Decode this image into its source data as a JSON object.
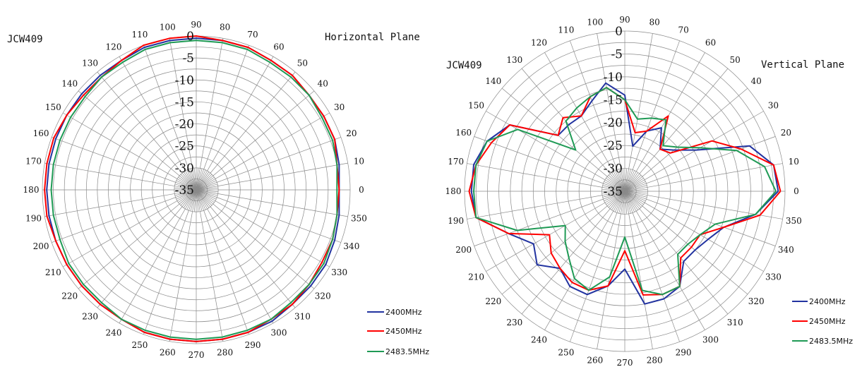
{
  "colors": {
    "s2400": "#2233a0",
    "s2450": "#ff0000",
    "s2483": "#1f9a55"
  },
  "chart_data": [
    {
      "type": "polar-line",
      "title": "JCW409",
      "plane_label": "Horizontal Plane",
      "rlim": [
        -35,
        0
      ],
      "radial_ticks": [
        "0",
        "-5",
        "-10",
        "-15",
        "-20",
        "-25",
        "-30",
        "-35"
      ],
      "angle_ticks": [
        "0",
        "10",
        "20",
        "30",
        "40",
        "50",
        "60",
        "70",
        "80",
        "90",
        "100",
        "110",
        "120",
        "130",
        "140",
        "150",
        "160",
        "170",
        "180",
        "190",
        "200",
        "210",
        "220",
        "230",
        "240",
        "250",
        "260",
        "270",
        "280",
        "290",
        "300",
        "310",
        "320",
        "330",
        "340",
        "350"
      ],
      "angles": [
        0,
        10,
        20,
        30,
        40,
        50,
        60,
        70,
        80,
        90,
        100,
        110,
        120,
        130,
        140,
        150,
        160,
        170,
        180,
        190,
        200,
        210,
        220,
        230,
        240,
        250,
        260,
        270,
        280,
        290,
        300,
        310,
        320,
        330,
        340,
        350
      ],
      "series": [
        {
          "name": "2400MHz",
          "color": "#2233a0",
          "values": [
            -2.5,
            -2,
            -1.5,
            -1.5,
            -1.5,
            -1,
            -1,
            -0.5,
            -0.5,
            -0.5,
            -0.5,
            -0.5,
            -1,
            -1,
            -1,
            -1,
            -1,
            -1,
            -1,
            -1,
            -1,
            -1,
            -1,
            -1,
            -1,
            -0.5,
            -0.5,
            -0.5,
            -0.5,
            -0.5,
            -0.5,
            -1,
            -1,
            -1,
            -1.5,
            -2
          ]
        },
        {
          "name": "2450MHz",
          "color": "#ff0000",
          "values": [
            -2.5,
            -2.5,
            -1.5,
            -1.5,
            -1.5,
            -1,
            -1,
            -0.5,
            -0.5,
            0,
            0,
            0,
            -1,
            -1.5,
            -1.5,
            -1,
            -0.5,
            -0.5,
            -0.5,
            -0.5,
            -1,
            -1,
            -1,
            -1,
            -1,
            -0.5,
            -0.5,
            -0.5,
            -0.5,
            -0.5,
            -1,
            -1,
            -1.5,
            -2,
            -2,
            -2.5
          ]
        },
        {
          "name": "2483.5MHz",
          "color": "#1f9a55",
          "values": [
            -3,
            -2.5,
            -2,
            -2,
            -1.5,
            -1.5,
            -1.5,
            -1,
            -1,
            -1,
            -1,
            -1,
            -1.5,
            -1.5,
            -2,
            -2,
            -2,
            -2,
            -2,
            -2,
            -2,
            -1.5,
            -1.5,
            -1.5,
            -1,
            -1,
            -1,
            -1,
            -1,
            -1,
            -1,
            -1.5,
            -1.5,
            -1.5,
            -2,
            -2.5
          ]
        }
      ]
    },
    {
      "type": "polar-line",
      "title": "JCW409",
      "plane_label": "Vertical Plane",
      "rlim": [
        -35,
        0
      ],
      "radial_ticks": [
        "0",
        "-5",
        "-10",
        "-15",
        "-20",
        "-25",
        "-30",
        "-35"
      ],
      "angle_ticks": [
        "0",
        "10",
        "20",
        "30",
        "40",
        "50",
        "60",
        "70",
        "80",
        "90",
        "100",
        "110",
        "120",
        "130",
        "140",
        "150",
        "160",
        "170",
        "180",
        "190",
        "200",
        "210",
        "220",
        "230",
        "240",
        "250",
        "260",
        "270",
        "280",
        "290",
        "300",
        "310",
        "320",
        "330",
        "340",
        "350"
      ],
      "angles": [
        0,
        10,
        20,
        30,
        40,
        50,
        60,
        70,
        80,
        90,
        100,
        110,
        120,
        130,
        140,
        150,
        160,
        170,
        180,
        190,
        200,
        210,
        220,
        230,
        240,
        250,
        260,
        270,
        280,
        290,
        300,
        310,
        320,
        330,
        340,
        350
      ],
      "series": [
        {
          "name": "2400MHz",
          "color": "#2233a0",
          "values": [
            -1.5,
            -2,
            -6,
            -17,
            -21,
            -23,
            -19,
            -21,
            -25,
            -14,
            -11,
            -14,
            -16,
            -16,
            -16,
            -6,
            -3,
            -1.5,
            -1.5,
            -2,
            -8,
            -12,
            -10,
            -13,
            -11,
            -11,
            -14,
            -18,
            -10,
            -10,
            -11,
            -15,
            -15,
            -14,
            -12,
            -6
          ]
        },
        {
          "name": "2450MHz",
          "color": "#ff0000",
          "values": [
            -1,
            -2,
            -8,
            -13,
            -22,
            -23,
            -16,
            -21,
            -22,
            -15,
            -12,
            -13,
            -16,
            -14,
            -16,
            -6,
            -4,
            -2,
            -1,
            -2,
            -8,
            -16,
            -14,
            -13,
            -12,
            -12,
            -14,
            -22,
            -12,
            -11,
            -11,
            -16,
            -16,
            -16,
            -12,
            -5
          ]
        },
        {
          "name": "2483.5MHz",
          "color": "#1f9a55",
          "values": [
            -2,
            -4,
            -9,
            -16,
            -20,
            -22,
            -17,
            -18,
            -19,
            -15,
            -12,
            -13,
            -14,
            -15,
            -21,
            -8,
            -3,
            -2,
            -2,
            -2,
            -10,
            -20,
            -18,
            -16,
            -13,
            -12,
            -16,
            -25,
            -13,
            -11,
            -11,
            -17,
            -17,
            -16,
            -14,
            -6
          ]
        }
      ]
    }
  ]
}
